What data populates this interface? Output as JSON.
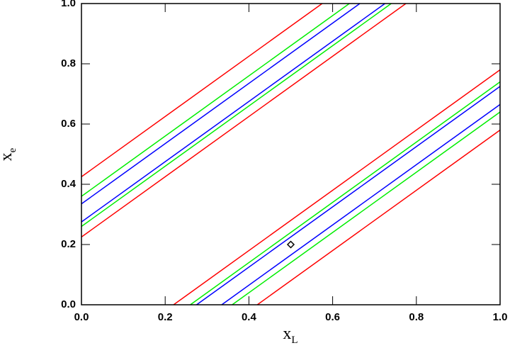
{
  "chart_data": {
    "type": "line",
    "xlabel": "x",
    "xlabel_sub": "L",
    "ylabel": "x",
    "ylabel_sub": "e",
    "xlim": [
      0,
      1
    ],
    "ylim": [
      0,
      1
    ],
    "xticks": [
      {
        "value": 0,
        "label": "0.0"
      },
      0.2,
      0.4,
      0.6,
      0.8,
      {
        "value": 1,
        "label": "1.0"
      }
    ],
    "yticks": [
      {
        "value": 0,
        "label": "0.0"
      },
      0.2,
      0.4,
      0.6,
      0.8,
      {
        "value": 1,
        "label": "1.0"
      }
    ],
    "series": [
      {
        "color": "#ff0000",
        "x": [
          0,
          0.575
        ],
        "values": [
          0.425,
          1
        ]
      },
      {
        "color": "#00ee00",
        "x": [
          0,
          0.64
        ],
        "values": [
          0.36,
          1
        ]
      },
      {
        "color": "#0000ff",
        "x": [
          0,
          0.665
        ],
        "values": [
          0.335,
          1
        ]
      },
      {
        "color": "#0000ff",
        "x": [
          0,
          0.725
        ],
        "values": [
          0.275,
          1
        ]
      },
      {
        "color": "#00ee00",
        "x": [
          0,
          0.74
        ],
        "values": [
          0.26,
          1
        ]
      },
      {
        "color": "#ff0000",
        "x": [
          0,
          0.775
        ],
        "values": [
          0.225,
          1
        ]
      },
      {
        "color": "#ff0000",
        "x": [
          0.22,
          1
        ],
        "values": [
          0,
          0.78
        ]
      },
      {
        "color": "#00ee00",
        "x": [
          0.26,
          1
        ],
        "values": [
          0,
          0.74
        ]
      },
      {
        "color": "#0000ff",
        "x": [
          0.275,
          1
        ],
        "values": [
          0,
          0.725
        ]
      },
      {
        "color": "#0000ff",
        "x": [
          0.335,
          1
        ],
        "values": [
          0,
          0.665
        ]
      },
      {
        "color": "#00ee00",
        "x": [
          0.36,
          1
        ],
        "values": [
          0,
          0.64
        ]
      },
      {
        "color": "#ff0000",
        "x": [
          0.42,
          1
        ],
        "values": [
          0,
          0.58
        ]
      }
    ],
    "markers": [
      {
        "x": 0.5,
        "y": 0.2,
        "shape": "diamond",
        "color": "#000000"
      }
    ]
  }
}
